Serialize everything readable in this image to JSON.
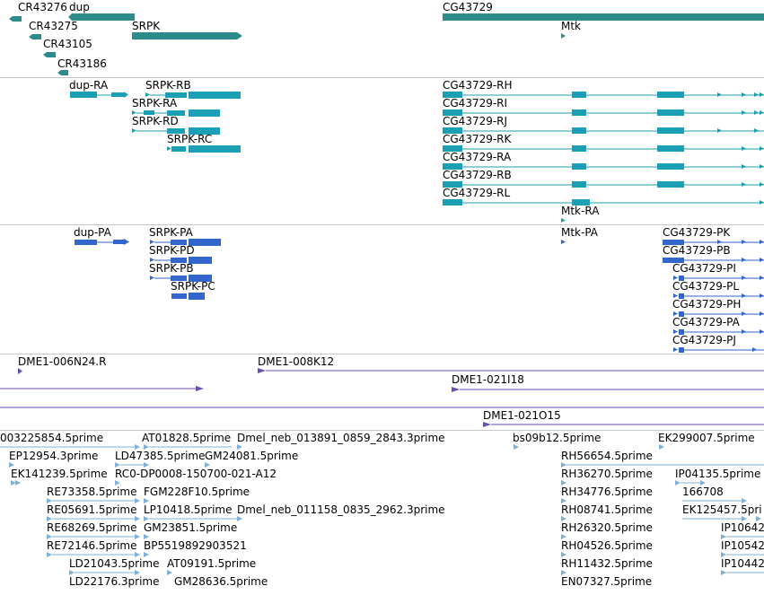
{
  "colors": {
    "gene": "#2e8b8b",
    "transcript": "#1a9fb5",
    "protein": "#3366cc",
    "clone": "#6a4fb0",
    "est": "#7fb0d8",
    "separator": "#c8c8c8"
  },
  "tracks": {
    "genes": {
      "labels": [
        "CR43276",
        "dup",
        "CR43275",
        "SRPK",
        "CR43105",
        "CR43186",
        "CG43729",
        "Mtk"
      ]
    },
    "transcripts": {
      "labels": [
        "dup-RA",
        "SRPK-RB",
        "SRPK-RA",
        "SRPK-RD",
        "SRPK-RC",
        "CG43729-RH",
        "CG43729-RI",
        "CG43729-RJ",
        "CG43729-RK",
        "CG43729-RA",
        "CG43729-RB",
        "CG43729-RL",
        "Mtk-RA"
      ]
    },
    "proteins": {
      "labels": [
        "dup-PA",
        "SRPK-PA",
        "SRPK-PD",
        "SRPK-PB",
        "SRPK-PC",
        "Mtk-PA",
        "CG43729-PK",
        "CG43729-PB",
        "CG43729-PI",
        "CG43729-PL",
        "CG43729-PH",
        "CG43729-PA",
        "CG43729-PJ"
      ]
    },
    "clones": {
      "labels": [
        "DME1-006N24.R",
        "DME1-008K12",
        "DME1-021I18",
        "DME1-021O15"
      ]
    },
    "ests": {
      "labels": [
        "003225854.5prime",
        "AT01828.5prime",
        "Dmel_neb_013891_0859_2843.3prime",
        "bs09b12.5prime",
        "EK299007.5prime",
        "EP12954.3prime",
        "LD47385.5prime",
        "GM24081.5prime",
        "RH56654.5prime",
        "EK141239.5prime",
        "RC0-DP0008-150700-021-A12",
        "RH36270.5prime",
        "IP04135.5prime",
        "RE73358.5prime",
        "FGM228F10.5prime",
        "RH34776.5prime",
        "166708",
        "RE05691.5prime",
        "LP10418.5prime",
        "Dmel_neb_011158_0835_2962.3prime",
        "RH08741.5prime",
        "EK125457.5pri",
        "RE68269.5prime",
        "GM23851.5prime",
        "RH26320.5prime",
        "IP10642",
        "RE72146.5prime",
        "BP5519892903521",
        "RH04526.5prime",
        "IP10542",
        "LD21043.5prime",
        "AT09191.5prime",
        "RH11432.5prime",
        "IP10442",
        "LD22176.3prime",
        "GM28636.5prime",
        "EN07327.5prime"
      ]
    }
  }
}
